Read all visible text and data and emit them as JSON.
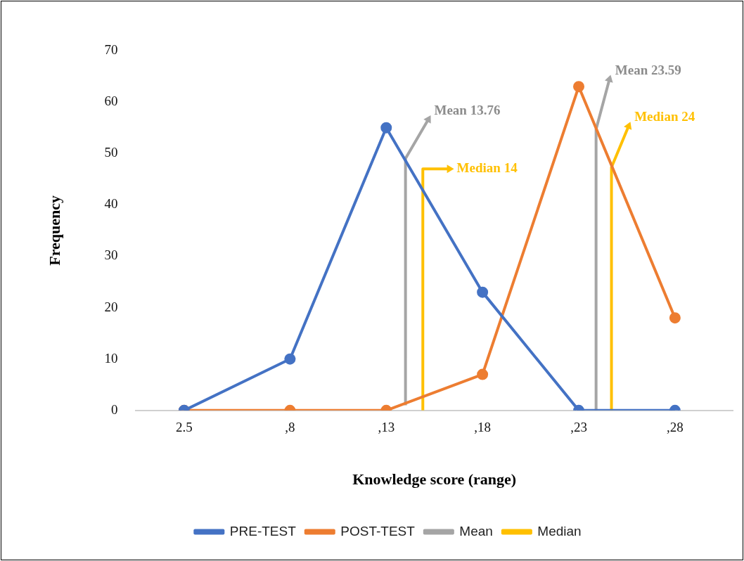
{
  "chart_data": {
    "type": "line",
    "xlabel": "Knowledge score (range)",
    "ylabel": "Frequency",
    "xlim": [
      0,
      31
    ],
    "xticks": [
      {
        "value": 2.5,
        "label": "2.5"
      },
      {
        "value": 8,
        "label": ",8"
      },
      {
        "value": 13,
        "label": ",13"
      },
      {
        "value": 18,
        "label": ",18"
      },
      {
        "value": 23,
        "label": ",23"
      },
      {
        "value": 28,
        "label": ",28"
      }
    ],
    "ylim": [
      0,
      70
    ],
    "yticks": [
      0,
      10,
      20,
      30,
      40,
      50,
      60,
      70
    ],
    "grid": false,
    "legend": "bottom",
    "series": [
      {
        "name": "PRE-TEST",
        "color": "#4472c4",
        "marker": "circle",
        "x": [
          2.5,
          8,
          13,
          18,
          23,
          28
        ],
        "values": [
          0,
          10,
          55,
          23,
          0,
          0
        ]
      },
      {
        "name": "POST-TEST",
        "color": "#ed7d31",
        "marker": "circle",
        "x": [
          2.5,
          8,
          13,
          18,
          23,
          28
        ],
        "values": [
          0,
          0,
          0,
          7,
          63,
          18
        ]
      },
      {
        "name": "Mean",
        "color": "#a5a5a5",
        "marker": "none",
        "x": [
          14,
          14,
          15.2,
          null,
          23.9,
          23.9,
          24.6
        ],
        "values": [
          1,
          49,
          56.7,
          null,
          0,
          54.7,
          64.5
        ]
      },
      {
        "name": "Median",
        "color": "#ffc000",
        "marker": "none",
        "x": [
          14.9,
          14.9,
          16.3,
          null,
          24.7,
          24.7,
          25.6
        ],
        "values": [
          0,
          47,
          47,
          null,
          0,
          47.3,
          55.4
        ]
      }
    ],
    "annotations": [
      "Mean 13.76",
      "Mean 23.59",
      "Median 14",
      "Median 24"
    ]
  }
}
